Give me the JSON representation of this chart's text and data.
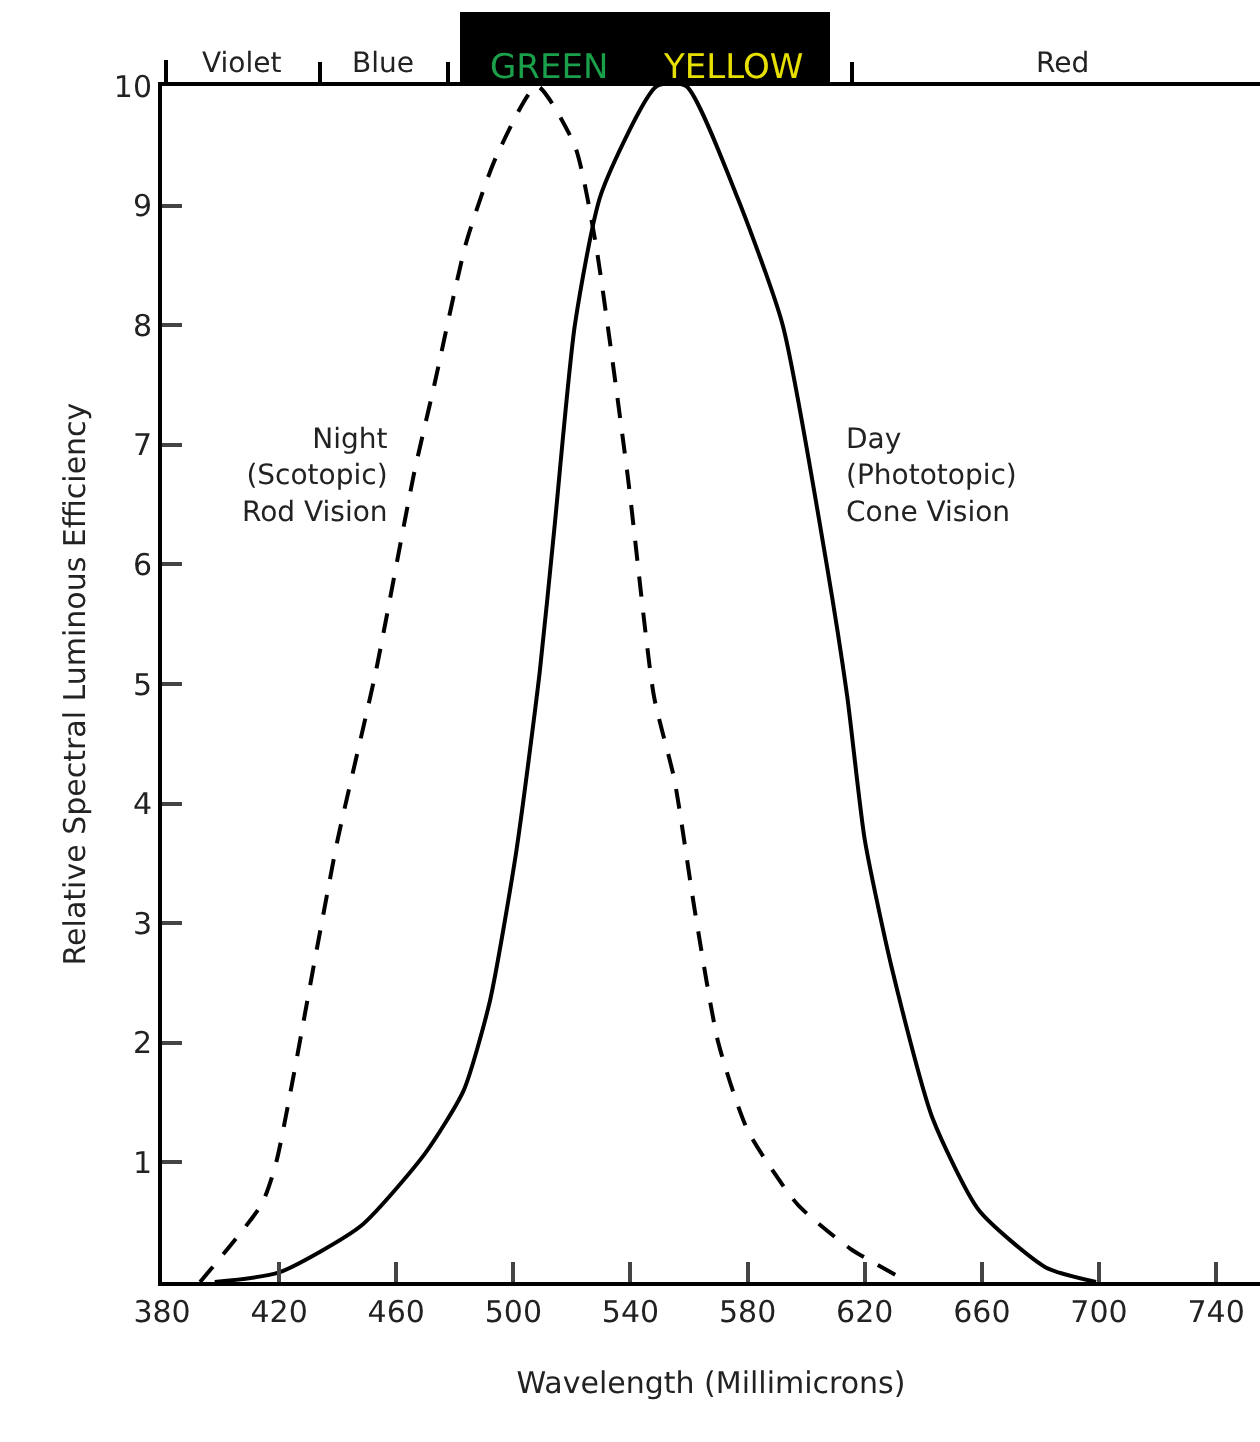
{
  "chart_data": {
    "type": "line",
    "xlabel": "Wavelength (Millimicrons)",
    "ylabel": "Relative Spectral Luminous Efficiency",
    "xlim": [
      380,
      755
    ],
    "xticks": [
      380,
      420,
      460,
      500,
      540,
      580,
      620,
      660,
      700,
      740
    ],
    "ylim": [
      0,
      10
    ],
    "yticks": [
      1,
      2,
      3,
      4,
      5,
      6,
      7,
      8,
      9,
      10
    ],
    "grid": false,
    "marker": "none",
    "series": [
      {
        "color": "#000000",
        "line_style": "dashed",
        "x": [
          393,
          414,
          419,
          433,
          440,
          453,
          466,
          473,
          484,
          494,
          508,
          521,
          528,
          539,
          548,
          555,
          562,
          570,
          580,
          597,
          615,
          635
        ],
        "values": [
          0,
          0.65,
          1.0,
          2.8,
          3.7,
          5.1,
          6.75,
          7.5,
          8.7,
          9.4,
          10,
          9.5,
          8.7,
          6.75,
          4.9,
          4.2,
          3.1,
          2.0,
          1.27,
          0.65,
          0.28,
          0
        ]
      },
      {
        "color": "#000000",
        "line_style": "solid",
        "x": [
          398,
          420,
          448,
          470,
          483,
          492,
          501,
          509,
          514,
          521,
          530,
          549,
          559,
          576,
          592,
          607,
          614,
          620,
          629,
          643,
          659,
          682,
          699
        ],
        "values": [
          0,
          0.08,
          0.47,
          1.08,
          1.6,
          2.35,
          3.6,
          5.1,
          6.3,
          8.0,
          9.1,
          10,
          10,
          9.1,
          8.0,
          6.0,
          4.9,
          3.7,
          2.65,
          1.38,
          0.6,
          0.12,
          0
        ]
      }
    ],
    "annotations": [
      "Night\n(Scotopic)\nRod Vision",
      "Day\n(Phototopic)\nCone Vision",
      "Violet",
      "Blue",
      "GREEN",
      "YELLOW",
      "Red"
    ]
  }
}
